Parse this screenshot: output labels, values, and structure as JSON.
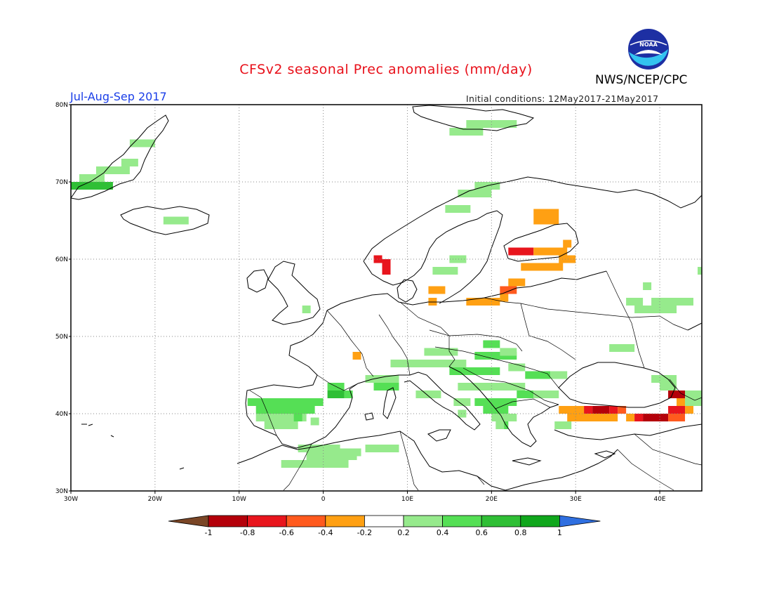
{
  "header": {
    "title": "CFSv2 seasonal Prec anomalies (mm/day)",
    "org": "NWS/NCEP/CPC",
    "logo_text": "NOAA",
    "period": "Jul-Aug-Sep 2017",
    "initial_conditions": "Initial conditions: 12May2017-21May2017"
  },
  "map": {
    "lon_range": [
      -30,
      45
    ],
    "lat_range": [
      30,
      80
    ],
    "lat_labels": [
      "80N",
      "70N",
      "60N",
      "50N",
      "40N",
      "30N"
    ],
    "lon_labels": [
      "30W",
      "20W",
      "10W",
      "0",
      "10E",
      "20E",
      "30E",
      "40E"
    ],
    "cell_size_deg": 1,
    "anomaly_cells": [
      {
        "lon": -30,
        "lat": 69,
        "w": 5,
        "h": 1,
        "v": 0.7
      },
      {
        "lon": -29,
        "lat": 70,
        "w": 3,
        "h": 1,
        "v": 0.35
      },
      {
        "lon": -27,
        "lat": 71,
        "w": 4,
        "h": 1,
        "v": 0.3
      },
      {
        "lon": -24,
        "lat": 72,
        "w": 2,
        "h": 1,
        "v": 0.3
      },
      {
        "lon": -23,
        "lat": 74.5,
        "w": 3,
        "h": 1,
        "v": 0.3
      },
      {
        "lon": -19,
        "lat": 64.5,
        "w": 3,
        "h": 1,
        "v": 0.3
      },
      {
        "lon": 17,
        "lat": 77,
        "w": 6,
        "h": 1,
        "v": 0.3
      },
      {
        "lon": 15,
        "lat": 76,
        "w": 4,
        "h": 1,
        "v": 0.3
      },
      {
        "lon": 16,
        "lat": 68,
        "w": 4,
        "h": 1,
        "v": 0.3
      },
      {
        "lon": 18,
        "lat": 69,
        "w": 3,
        "h": 1,
        "v": 0.3
      },
      {
        "lon": 14.5,
        "lat": 66,
        "w": 3,
        "h": 1,
        "v": 0.3
      },
      {
        "lon": 25,
        "lat": 64.5,
        "w": 3,
        "h": 2,
        "v": -0.4
      },
      {
        "lon": 22,
        "lat": 60.5,
        "w": 3,
        "h": 1,
        "v": -0.7
      },
      {
        "lon": 25,
        "lat": 60.5,
        "w": 4,
        "h": 1,
        "v": -0.3
      },
      {
        "lon": 23.5,
        "lat": 58.5,
        "w": 5,
        "h": 1,
        "v": -0.35
      },
      {
        "lon": 28.5,
        "lat": 61.5,
        "w": 1,
        "h": 1,
        "v": -0.3
      },
      {
        "lon": 28,
        "lat": 59.5,
        "w": 2,
        "h": 1,
        "v": -0.3
      },
      {
        "lon": 22,
        "lat": 56.5,
        "w": 2,
        "h": 1,
        "v": -0.4
      },
      {
        "lon": 21,
        "lat": 55.5,
        "w": 2,
        "h": 1,
        "v": -0.5
      },
      {
        "lon": 21,
        "lat": 54.5,
        "w": 1,
        "h": 1,
        "v": -0.3
      },
      {
        "lon": 17,
        "lat": 54,
        "w": 4,
        "h": 1,
        "v": -0.35
      },
      {
        "lon": 12.5,
        "lat": 55.5,
        "w": 2,
        "h": 1,
        "v": -0.4
      },
      {
        "lon": 12.5,
        "lat": 54,
        "w": 1,
        "h": 1,
        "v": -0.35
      },
      {
        "lon": 13,
        "lat": 58,
        "w": 3,
        "h": 1,
        "v": 0.3
      },
      {
        "lon": 15,
        "lat": 59.5,
        "w": 2,
        "h": 1,
        "v": 0.3
      },
      {
        "lon": 6,
        "lat": 59.5,
        "w": 1,
        "h": 1,
        "v": -0.7
      },
      {
        "lon": 7,
        "lat": 59,
        "w": 1,
        "h": 1,
        "v": -0.3
      },
      {
        "lon": 7,
        "lat": 58,
        "w": 1,
        "h": 2,
        "v": -0.7
      },
      {
        "lon": -2.5,
        "lat": 53,
        "w": 1,
        "h": 1,
        "v": 0.3
      },
      {
        "lon": 3.5,
        "lat": 47,
        "w": 1,
        "h": 1,
        "v": -0.4
      },
      {
        "lon": 12,
        "lat": 47.5,
        "w": 4,
        "h": 1,
        "v": 0.3
      },
      {
        "lon": 8,
        "lat": 46,
        "w": 9,
        "h": 1,
        "v": 0.3
      },
      {
        "lon": 19,
        "lat": 48.5,
        "w": 2,
        "h": 1,
        "v": 0.5
      },
      {
        "lon": 18,
        "lat": 47,
        "w": 5,
        "h": 1,
        "v": 0.4
      },
      {
        "lon": 21,
        "lat": 47.5,
        "w": 2,
        "h": 1,
        "v": 0.3
      },
      {
        "lon": 15,
        "lat": 45,
        "w": 6,
        "h": 1,
        "v": 0.45
      },
      {
        "lon": 22,
        "lat": 45.5,
        "w": 2,
        "h": 1,
        "v": 0.3
      },
      {
        "lon": 24,
        "lat": 44.5,
        "w": 3,
        "h": 1,
        "v": 0.45
      },
      {
        "lon": 27,
        "lat": 44.5,
        "w": 2,
        "h": 1,
        "v": 0.3
      },
      {
        "lon": 16,
        "lat": 43,
        "w": 8,
        "h": 1,
        "v": 0.35
      },
      {
        "lon": 23,
        "lat": 42,
        "w": 2,
        "h": 1,
        "v": 0.55
      },
      {
        "lon": 25,
        "lat": 42,
        "w": 3,
        "h": 1,
        "v": 0.35
      },
      {
        "lon": 18,
        "lat": 41,
        "w": 5,
        "h": 1,
        "v": 0.4
      },
      {
        "lon": 19,
        "lat": 40,
        "w": 3,
        "h": 1,
        "v": 0.45
      },
      {
        "lon": 20,
        "lat": 39,
        "w": 3,
        "h": 1,
        "v": 0.3
      },
      {
        "lon": 21,
        "lat": 38,
        "w": 1,
        "h": 1,
        "v": 0.45
      },
      {
        "lon": 27.5,
        "lat": 38,
        "w": 2,
        "h": 1,
        "v": 0.3
      },
      {
        "lon": 5,
        "lat": 44,
        "w": 4,
        "h": 1,
        "v": 0.35
      },
      {
        "lon": 6,
        "lat": 43,
        "w": 3,
        "h": 1,
        "v": 0.55
      },
      {
        "lon": 11,
        "lat": 42,
        "w": 3,
        "h": 1,
        "v": 0.3
      },
      {
        "lon": 15.5,
        "lat": 41,
        "w": 2,
        "h": 1,
        "v": 0.3
      },
      {
        "lon": 16,
        "lat": 39.5,
        "w": 1,
        "h": 1,
        "v": 0.3
      },
      {
        "lon": 0.5,
        "lat": 43,
        "w": 2,
        "h": 1,
        "v": 0.4
      },
      {
        "lon": 0.5,
        "lat": 42,
        "w": 2,
        "h": 1,
        "v": 0.65
      },
      {
        "lon": 2.5,
        "lat": 42,
        "w": 1,
        "h": 1,
        "v": 0.4
      },
      {
        "lon": -9,
        "lat": 41,
        "w": 4,
        "h": 1,
        "v": 0.4
      },
      {
        "lon": -7,
        "lat": 41,
        "w": 7,
        "h": 1,
        "v": 0.5
      },
      {
        "lon": -8,
        "lat": 40,
        "w": 7,
        "h": 1,
        "v": 0.5
      },
      {
        "lon": -8,
        "lat": 39,
        "w": 6,
        "h": 1,
        "v": 0.35
      },
      {
        "lon": -7,
        "lat": 38,
        "w": 4,
        "h": 1,
        "v": 0.35
      },
      {
        "lon": -3.5,
        "lat": 39,
        "w": 1,
        "h": 1,
        "v": 0.45
      },
      {
        "lon": -1.5,
        "lat": 38.5,
        "w": 1,
        "h": 1,
        "v": 0.3
      },
      {
        "lon": -3,
        "lat": 35,
        "w": 5,
        "h": 1,
        "v": 0.35
      },
      {
        "lon": -5,
        "lat": 33,
        "w": 8,
        "h": 1,
        "v": 0.35
      },
      {
        "lon": -2,
        "lat": 34,
        "w": 6,
        "h": 1,
        "v": 0.35
      },
      {
        "lon": 1.5,
        "lat": 34.5,
        "w": 3,
        "h": 1,
        "v": 0.35
      },
      {
        "lon": 5,
        "lat": 35,
        "w": 4,
        "h": 1,
        "v": 0.35
      },
      {
        "lon": 20.5,
        "lat": 38,
        "w": 1,
        "h": 1,
        "v": 0.35
      },
      {
        "lon": 37,
        "lat": 53,
        "w": 5,
        "h": 1,
        "v": 0.3
      },
      {
        "lon": 36,
        "lat": 54,
        "w": 2,
        "h": 1,
        "v": 0.3
      },
      {
        "lon": 39,
        "lat": 54,
        "w": 5,
        "h": 1,
        "v": 0.3
      },
      {
        "lon": 38,
        "lat": 56,
        "w": 1,
        "h": 1,
        "v": 0.3
      },
      {
        "lon": 44.5,
        "lat": 58,
        "w": 1,
        "h": 1,
        "v": 0.3
      },
      {
        "lon": 34,
        "lat": 48,
        "w": 3,
        "h": 1,
        "v": 0.3
      },
      {
        "lon": 39,
        "lat": 44,
        "w": 3,
        "h": 1,
        "v": 0.3
      },
      {
        "lon": 40,
        "lat": 43,
        "w": 2,
        "h": 1,
        "v": 0.3
      },
      {
        "lon": 43,
        "lat": 41,
        "w": 2,
        "h": 2,
        "v": 0.3
      },
      {
        "lon": 41,
        "lat": 42,
        "w": 2,
        "h": 1,
        "v": -0.95
      },
      {
        "lon": 42,
        "lat": 41,
        "w": 1,
        "h": 1,
        "v": -0.4
      },
      {
        "lon": 41,
        "lat": 40,
        "w": 2,
        "h": 1,
        "v": -0.7
      },
      {
        "lon": 28,
        "lat": 40,
        "w": 4,
        "h": 1,
        "v": -0.35
      },
      {
        "lon": 31,
        "lat": 40,
        "w": 1,
        "h": 1,
        "v": -0.7
      },
      {
        "lon": 32,
        "lat": 40,
        "w": 2,
        "h": 1,
        "v": -0.9
      },
      {
        "lon": 34,
        "lat": 40,
        "w": 1,
        "h": 1,
        "v": -0.7
      },
      {
        "lon": 35,
        "lat": 40,
        "w": 1,
        "h": 1,
        "v": -0.5
      },
      {
        "lon": 29,
        "lat": 39,
        "w": 6,
        "h": 1,
        "v": -0.35
      },
      {
        "lon": 36,
        "lat": 39,
        "w": 1,
        "h": 1,
        "v": -0.35
      },
      {
        "lon": 37,
        "lat": 39,
        "w": 1,
        "h": 1,
        "v": -0.7
      },
      {
        "lon": 38,
        "lat": 39,
        "w": 3,
        "h": 1,
        "v": -0.9
      },
      {
        "lon": 41,
        "lat": 39,
        "w": 2,
        "h": 1,
        "v": -0.6
      },
      {
        "lon": 43,
        "lat": 40,
        "w": 1,
        "h": 1,
        "v": -0.4
      }
    ],
    "land_color": "#ffffff",
    "coast_color": "#000000",
    "grid_color": "#777777"
  },
  "colorbar": {
    "labels": [
      "-1",
      "-0.8",
      "-0.6",
      "-0.4",
      "-0.2",
      "0.2",
      "0.4",
      "0.6",
      "0.8",
      "1"
    ],
    "bins": [
      {
        "color": "#b4000a",
        "min": -1.0,
        "max": -0.8
      },
      {
        "color": "#e8151d",
        "min": -0.8,
        "max": -0.6
      },
      {
        "color": "#ff5a1e",
        "min": -0.6,
        "max": -0.4
      },
      {
        "color": "#ffa013",
        "min": -0.4,
        "max": -0.2
      },
      {
        "color": "#ffffff",
        "min": -0.2,
        "max": 0.2
      },
      {
        "color": "#96ea8c",
        "min": 0.2,
        "max": 0.4
      },
      {
        "color": "#55df55",
        "min": 0.4,
        "max": 0.6
      },
      {
        "color": "#2fbf35",
        "min": 0.6,
        "max": 0.8
      },
      {
        "color": "#10a71c",
        "min": 0.8,
        "max": 1.0
      }
    ],
    "low_end_color": "#7a4626",
    "high_end_color": "#2f6fe0"
  }
}
